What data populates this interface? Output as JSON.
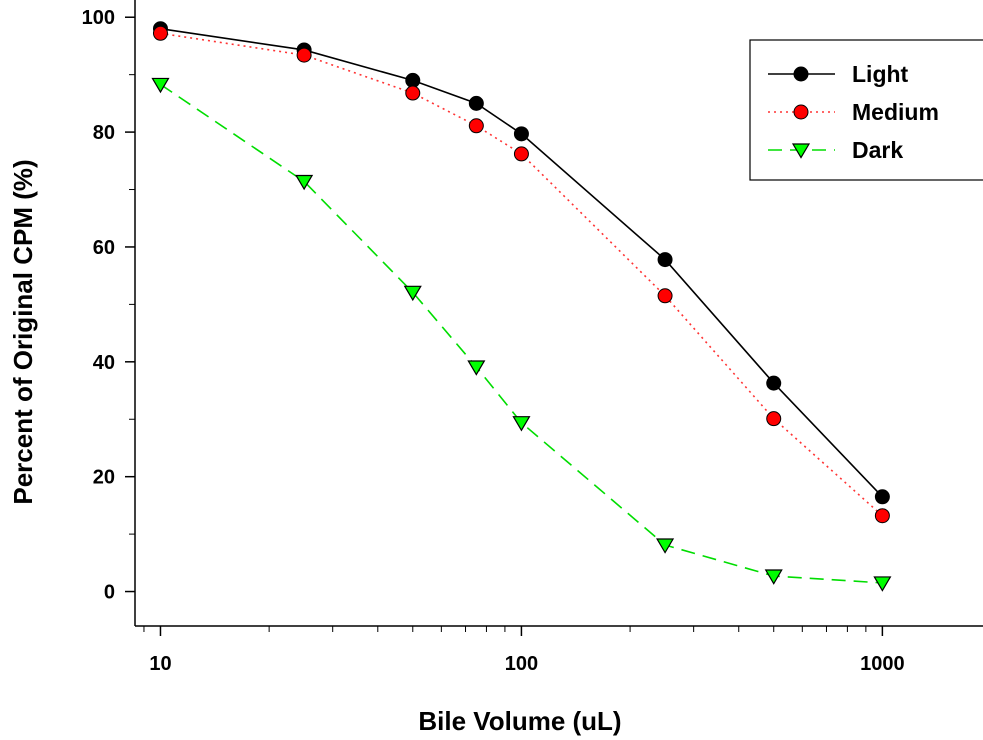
{
  "chart_data": {
    "type": "line",
    "xlabel": "Bile Volume (uL)",
    "ylabel": "Percent of Original CPM (%)",
    "x_scale": "log",
    "xlim": [
      8.5,
      1900
    ],
    "ylim": [
      -6,
      103
    ],
    "x_ticks": [
      "10",
      "100",
      "1000"
    ],
    "y_ticks": [
      "0",
      "20",
      "40",
      "60",
      "80",
      "100"
    ],
    "grid": false,
    "legend_position": "top-right",
    "x": [
      10,
      25,
      50,
      75,
      100,
      250,
      500,
      1000
    ],
    "series": [
      {
        "name": "Light",
        "values": [
          98,
          94.3,
          89,
          85,
          79.7,
          57.8,
          36.3,
          16.5
        ],
        "color": "#000000",
        "line_color": "#000000",
        "marker": "circle",
        "line_style": "solid"
      },
      {
        "name": "Medium",
        "values": [
          97.2,
          93.4,
          86.8,
          81.1,
          76.2,
          51.5,
          30.1,
          13.2
        ],
        "color": "#ff0000",
        "line_color": "#ff3333",
        "marker": "circle",
        "line_style": "dotted"
      },
      {
        "name": "Dark",
        "values": [
          88.3,
          71.4,
          52.1,
          39.1,
          29.4,
          8.1,
          2.7,
          1.5
        ],
        "color": "#00ff00",
        "line_color": "#00dd00",
        "marker": "triangle-down",
        "line_style": "dashed"
      }
    ]
  }
}
